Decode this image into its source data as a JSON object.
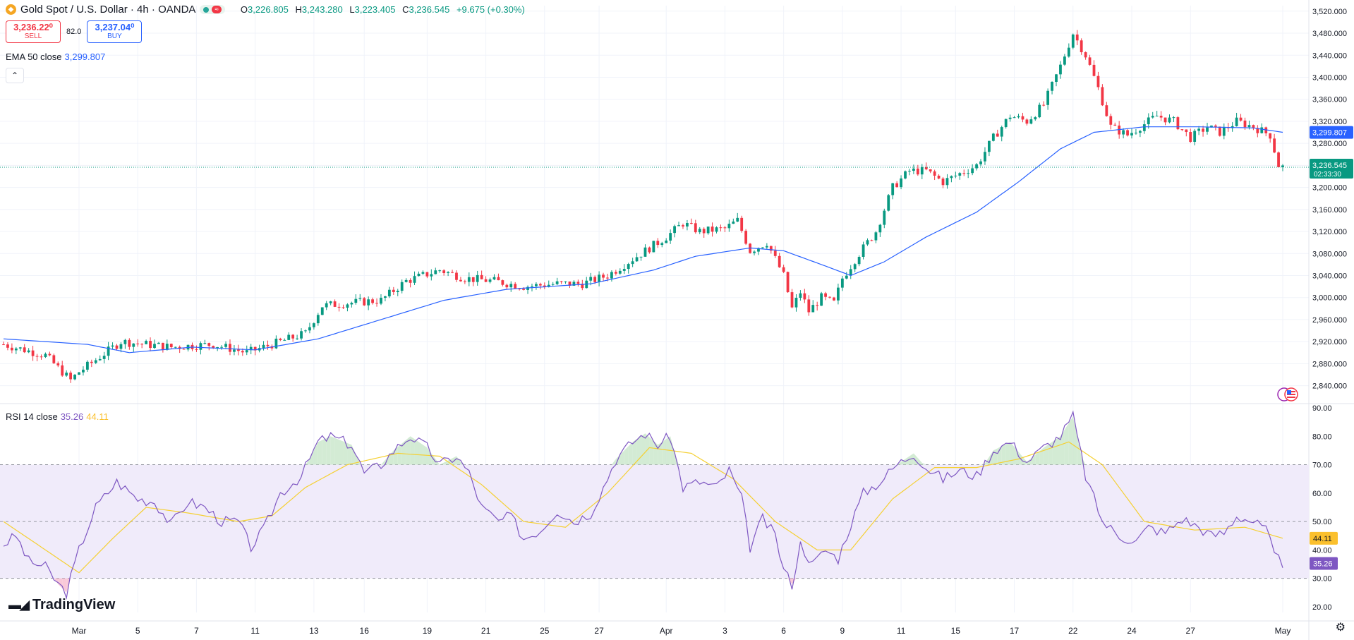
{
  "header": {
    "title": "Gold Spot / U.S. Dollar · 4h · OANDA",
    "ohlc": {
      "o_label": "O",
      "o": "3,226.805",
      "h_label": "H",
      "h": "3,243.280",
      "l_label": "L",
      "l": "3,223.405",
      "c_label": "C",
      "c": "3,236.545",
      "change": "+9.675 (+0.30%)"
    },
    "pill_wave": "≈"
  },
  "trade": {
    "sell_price": "3,236.22⁰",
    "sell_label": "SELL",
    "spread": "82.0",
    "buy_price": "3,237.04⁰",
    "buy_label": "BUY"
  },
  "ema": {
    "label": "EMA 50 close",
    "value": "3,299.807"
  },
  "rsi": {
    "label": "RSI 14 close",
    "value": "35.26",
    "ma_value": "44.11"
  },
  "brand": {
    "name": "TradingView"
  },
  "colors": {
    "up": "#089981",
    "down": "#f23645",
    "ema": "#2962ff",
    "rsi": "#7e57c2",
    "rsi_ma": "#f5d033",
    "rsi_band": "#f0ebfa",
    "last_price": "#089981"
  },
  "chart_data": [
    {
      "type": "candlestick",
      "title": "Gold Spot / U.S. Dollar · 4h · OANDA",
      "ylim": [
        2810,
        3530
      ],
      "y_ticks": [
        "3,520.000",
        "3,480.000",
        "3,440.000",
        "3,400.000",
        "3,360.000",
        "3,320.000",
        "3,280.000",
        "3,240.000",
        "3,200.000",
        "3,160.000",
        "3,120.000",
        "3,080.000",
        "3,040.000",
        "3,000.000",
        "2,960.000",
        "2,920.000",
        "2,880.000",
        "2,840.000"
      ],
      "y_tick_values": [
        3520,
        3480,
        3440,
        3400,
        3360,
        3320,
        3280,
        3240,
        3200,
        3160,
        3120,
        3080,
        3040,
        3000,
        2960,
        2920,
        2880,
        2840
      ],
      "x_labels": [
        "Mar",
        "5",
        "7",
        "11",
        "13",
        "16",
        "19",
        "21",
        "25",
        "27",
        "Apr",
        "3",
        "6",
        "9",
        "11",
        "15",
        "17",
        "22",
        "24",
        "27",
        "May"
      ],
      "x_label_bars": [
        18,
        32,
        46,
        60,
        74,
        86,
        101,
        115,
        129,
        142,
        158,
        172,
        186,
        200,
        214,
        227,
        241,
        255,
        269,
        283,
        305
      ],
      "ema_label": "3,299.807",
      "last_price_label": "3,236.545",
      "countdown": "02:33:30",
      "key_points": [
        {
          "bar": 0,
          "close": 2915
        },
        {
          "bar": 10,
          "close": 2895
        },
        {
          "bar": 16,
          "close": 2850
        },
        {
          "bar": 18,
          "close": 2865
        },
        {
          "bar": 28,
          "close": 2920
        },
        {
          "bar": 40,
          "close": 2910
        },
        {
          "bar": 50,
          "close": 2915
        },
        {
          "bar": 58,
          "close": 2900
        },
        {
          "bar": 62,
          "close": 2910
        },
        {
          "bar": 72,
          "close": 2935
        },
        {
          "bar": 76,
          "close": 2985
        },
        {
          "bar": 82,
          "close": 2990
        },
        {
          "bar": 90,
          "close": 2995
        },
        {
          "bar": 96,
          "close": 3030
        },
        {
          "bar": 104,
          "close": 3050
        },
        {
          "bar": 110,
          "close": 3035
        },
        {
          "bar": 117,
          "close": 3030
        },
        {
          "bar": 124,
          "close": 3020
        },
        {
          "bar": 132,
          "close": 3025
        },
        {
          "bar": 138,
          "close": 3025
        },
        {
          "bar": 144,
          "close": 3040
        },
        {
          "bar": 152,
          "close": 3080
        },
        {
          "bar": 158,
          "close": 3110
        },
        {
          "bar": 162,
          "close": 3135
        },
        {
          "bar": 166,
          "close": 3120
        },
        {
          "bar": 172,
          "close": 3125
        },
        {
          "bar": 175,
          "close": 3140
        },
        {
          "bar": 178,
          "close": 3085
        },
        {
          "bar": 182,
          "close": 3100
        },
        {
          "bar": 186,
          "close": 3040
        },
        {
          "bar": 188,
          "close": 2980
        },
        {
          "bar": 190,
          "close": 3010
        },
        {
          "bar": 192,
          "close": 2975
        },
        {
          "bar": 195,
          "close": 3000
        },
        {
          "bar": 198,
          "close": 2990
        },
        {
          "bar": 200,
          "close": 3035
        },
        {
          "bar": 204,
          "close": 3080
        },
        {
          "bar": 208,
          "close": 3120
        },
        {
          "bar": 212,
          "close": 3200
        },
        {
          "bar": 216,
          "close": 3230
        },
        {
          "bar": 220,
          "close": 3230
        },
        {
          "bar": 224,
          "close": 3210
        },
        {
          "bar": 228,
          "close": 3225
        },
        {
          "bar": 232,
          "close": 3240
        },
        {
          "bar": 236,
          "close": 3290
        },
        {
          "bar": 240,
          "close": 3330
        },
        {
          "bar": 244,
          "close": 3320
        },
        {
          "bar": 248,
          "close": 3350
        },
        {
          "bar": 252,
          "close": 3420
        },
        {
          "bar": 255,
          "close": 3480
        },
        {
          "bar": 258,
          "close": 3440
        },
        {
          "bar": 261,
          "close": 3380
        },
        {
          "bar": 264,
          "close": 3310
        },
        {
          "bar": 268,
          "close": 3295
        },
        {
          "bar": 271,
          "close": 3310
        },
        {
          "bar": 275,
          "close": 3330
        },
        {
          "bar": 279,
          "close": 3320
        },
        {
          "bar": 283,
          "close": 3290
        },
        {
          "bar": 287,
          "close": 3310
        },
        {
          "bar": 290,
          "close": 3300
        },
        {
          "bar": 294,
          "close": 3320
        },
        {
          "bar": 298,
          "close": 3310
        },
        {
          "bar": 302,
          "close": 3295
        },
        {
          "bar": 304,
          "close": 3240
        },
        {
          "bar": 305,
          "close": 3237
        }
      ],
      "ema_points": [
        {
          "bar": 0,
          "value": 2925
        },
        {
          "bar": 20,
          "value": 2915
        },
        {
          "bar": 30,
          "value": 2900
        },
        {
          "bar": 45,
          "value": 2910
        },
        {
          "bar": 60,
          "value": 2905
        },
        {
          "bar": 75,
          "value": 2925
        },
        {
          "bar": 90,
          "value": 2960
        },
        {
          "bar": 105,
          "value": 2995
        },
        {
          "bar": 120,
          "value": 3015
        },
        {
          "bar": 140,
          "value": 3025
        },
        {
          "bar": 155,
          "value": 3050
        },
        {
          "bar": 165,
          "value": 3075
        },
        {
          "bar": 178,
          "value": 3090
        },
        {
          "bar": 186,
          "value": 3085
        },
        {
          "bar": 195,
          "value": 3060
        },
        {
          "bar": 202,
          "value": 3040
        },
        {
          "bar": 210,
          "value": 3065
        },
        {
          "bar": 220,
          "value": 3110
        },
        {
          "bar": 232,
          "value": 3155
        },
        {
          "bar": 242,
          "value": 3210
        },
        {
          "bar": 252,
          "value": 3270
        },
        {
          "bar": 260,
          "value": 3300
        },
        {
          "bar": 272,
          "value": 3310
        },
        {
          "bar": 285,
          "value": 3310
        },
        {
          "bar": 298,
          "value": 3308
        },
        {
          "bar": 305,
          "value": 3300
        }
      ]
    },
    {
      "type": "line",
      "title": "RSI 14 close",
      "ylim": [
        18,
        90
      ],
      "y_ticks": [
        "90.00",
        "80.00",
        "70.00",
        "60.00",
        "50.00",
        "40.00",
        "30.00",
        "20.00"
      ],
      "y_tick_values": [
        90,
        80,
        70,
        60,
        50,
        40,
        30,
        20
      ],
      "band": [
        30,
        70
      ],
      "midline": 50,
      "rsi_label": "35.26",
      "ma_label": "44.11",
      "series": [
        {
          "name": "RSI",
          "points": [
            {
              "bar": 0,
              "value": 42
            },
            {
              "bar": 3,
              "value": 45
            },
            {
              "bar": 6,
              "value": 36
            },
            {
              "bar": 10,
              "value": 34
            },
            {
              "bar": 13,
              "value": 28
            },
            {
              "bar": 15,
              "value": 25
            },
            {
              "bar": 18,
              "value": 40
            },
            {
              "bar": 22,
              "value": 55
            },
            {
              "bar": 27,
              "value": 64
            },
            {
              "bar": 32,
              "value": 58
            },
            {
              "bar": 36,
              "value": 57
            },
            {
              "bar": 40,
              "value": 49
            },
            {
              "bar": 44,
              "value": 57
            },
            {
              "bar": 48,
              "value": 55
            },
            {
              "bar": 52,
              "value": 50
            },
            {
              "bar": 56,
              "value": 50
            },
            {
              "bar": 59,
              "value": 41
            },
            {
              "bar": 62,
              "value": 47
            },
            {
              "bar": 66,
              "value": 60
            },
            {
              "bar": 71,
              "value": 66
            },
            {
              "bar": 75,
              "value": 78
            },
            {
              "bar": 78,
              "value": 80
            },
            {
              "bar": 83,
              "value": 77
            },
            {
              "bar": 86,
              "value": 67
            },
            {
              "bar": 90,
              "value": 70
            },
            {
              "bar": 93,
              "value": 75
            },
            {
              "bar": 97,
              "value": 80
            },
            {
              "bar": 101,
              "value": 76
            },
            {
              "bar": 104,
              "value": 70
            },
            {
              "bar": 108,
              "value": 73
            },
            {
              "bar": 111,
              "value": 67
            },
            {
              "bar": 114,
              "value": 55
            },
            {
              "bar": 118,
              "value": 50
            },
            {
              "bar": 121,
              "value": 52
            },
            {
              "bar": 124,
              "value": 44
            },
            {
              "bar": 128,
              "value": 47
            },
            {
              "bar": 132,
              "value": 54
            },
            {
              "bar": 136,
              "value": 50
            },
            {
              "bar": 140,
              "value": 53
            },
            {
              "bar": 143,
              "value": 62
            },
            {
              "bar": 146,
              "value": 72
            },
            {
              "bar": 150,
              "value": 78
            },
            {
              "bar": 153,
              "value": 81
            },
            {
              "bar": 156,
              "value": 77
            },
            {
              "bar": 159,
              "value": 80
            },
            {
              "bar": 162,
              "value": 62
            },
            {
              "bar": 166,
              "value": 64
            },
            {
              "bar": 170,
              "value": 62
            },
            {
              "bar": 173,
              "value": 68
            },
            {
              "bar": 176,
              "value": 58
            },
            {
              "bar": 178,
              "value": 41
            },
            {
              "bar": 181,
              "value": 51
            },
            {
              "bar": 184,
              "value": 45
            },
            {
              "bar": 186,
              "value": 33
            },
            {
              "bar": 188,
              "value": 28
            },
            {
              "bar": 190,
              "value": 42
            },
            {
              "bar": 193,
              "value": 35
            },
            {
              "bar": 196,
              "value": 40
            },
            {
              "bar": 199,
              "value": 37
            },
            {
              "bar": 202,
              "value": 49
            },
            {
              "bar": 205,
              "value": 60
            },
            {
              "bar": 209,
              "value": 64
            },
            {
              "bar": 213,
              "value": 70
            },
            {
              "bar": 217,
              "value": 74
            },
            {
              "bar": 220,
              "value": 69
            },
            {
              "bar": 224,
              "value": 65
            },
            {
              "bar": 228,
              "value": 68
            },
            {
              "bar": 232,
              "value": 66
            },
            {
              "bar": 236,
              "value": 75
            },
            {
              "bar": 240,
              "value": 78
            },
            {
              "bar": 244,
              "value": 71
            },
            {
              "bar": 248,
              "value": 76
            },
            {
              "bar": 252,
              "value": 80
            },
            {
              "bar": 255,
              "value": 87
            },
            {
              "bar": 258,
              "value": 66
            },
            {
              "bar": 262,
              "value": 50
            },
            {
              "bar": 266,
              "value": 45
            },
            {
              "bar": 270,
              "value": 43
            },
            {
              "bar": 273,
              "value": 48
            },
            {
              "bar": 277,
              "value": 46
            },
            {
              "bar": 281,
              "value": 51
            },
            {
              "bar": 285,
              "value": 48
            },
            {
              "bar": 288,
              "value": 45
            },
            {
              "bar": 291,
              "value": 46
            },
            {
              "bar": 294,
              "value": 52
            },
            {
              "bar": 298,
              "value": 50
            },
            {
              "bar": 301,
              "value": 47
            },
            {
              "bar": 303,
              "value": 38
            },
            {
              "bar": 305,
              "value": 35.26
            }
          ]
        },
        {
          "name": "RSI MA",
          "points": [
            {
              "bar": 0,
              "value": 50
            },
            {
              "bar": 10,
              "value": 40
            },
            {
              "bar": 18,
              "value": 32
            },
            {
              "bar": 26,
              "value": 44
            },
            {
              "bar": 34,
              "value": 55
            },
            {
              "bar": 44,
              "value": 53
            },
            {
              "bar": 56,
              "value": 50
            },
            {
              "bar": 64,
              "value": 52
            },
            {
              "bar": 72,
              "value": 62
            },
            {
              "bar": 82,
              "value": 70
            },
            {
              "bar": 94,
              "value": 74
            },
            {
              "bar": 104,
              "value": 73
            },
            {
              "bar": 114,
              "value": 63
            },
            {
              "bar": 124,
              "value": 50
            },
            {
              "bar": 134,
              "value": 48
            },
            {
              "bar": 144,
              "value": 60
            },
            {
              "bar": 154,
              "value": 76
            },
            {
              "bar": 164,
              "value": 74
            },
            {
              "bar": 174,
              "value": 65
            },
            {
              "bar": 184,
              "value": 50
            },
            {
              "bar": 194,
              "value": 40
            },
            {
              "bar": 202,
              "value": 40
            },
            {
              "bar": 212,
              "value": 58
            },
            {
              "bar": 222,
              "value": 69
            },
            {
              "bar": 232,
              "value": 69
            },
            {
              "bar": 242,
              "value": 72
            },
            {
              "bar": 254,
              "value": 78
            },
            {
              "bar": 262,
              "value": 70
            },
            {
              "bar": 272,
              "value": 50
            },
            {
              "bar": 284,
              "value": 47
            },
            {
              "bar": 296,
              "value": 48
            },
            {
              "bar": 305,
              "value": 44.11
            }
          ]
        }
      ]
    }
  ]
}
